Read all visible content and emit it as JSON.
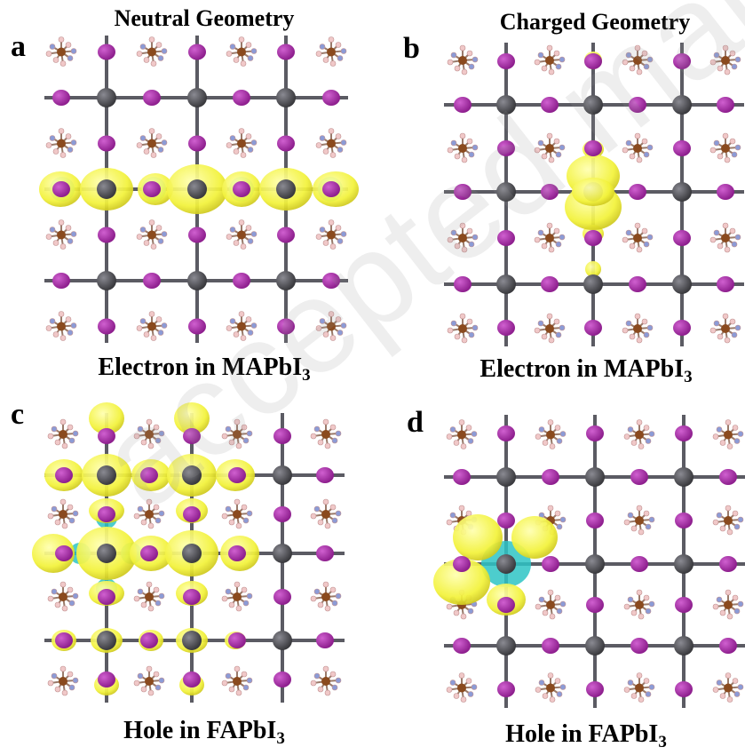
{
  "panels": [
    {
      "letter": "a",
      "heading": "Neutral Geometry",
      "caption_main": "Electron in MAPbI",
      "caption_sub": "3"
    },
    {
      "letter": "b",
      "heading": "Charged Geometry",
      "caption_main": "Electron in MAPbI",
      "caption_sub": "3"
    },
    {
      "letter": "c",
      "heading": "",
      "caption_main": "Hole in FAPbI",
      "caption_sub": "3"
    },
    {
      "letter": "d",
      "heading": "",
      "caption_main": "Hole in FAPbI",
      "caption_sub": "3"
    }
  ],
  "colors": {
    "iodine": "#8e1f8e",
    "lead": "#3a3a3e",
    "bond": "#5b5b63",
    "isosurface_positive": "#f2f23a",
    "isosurface_negative": "#2ec4c4",
    "organic_carbon": "#8a4a1e",
    "organic_nitrogen": "#8c9bd6",
    "organic_hydrogen": "#f0c8c8"
  }
}
